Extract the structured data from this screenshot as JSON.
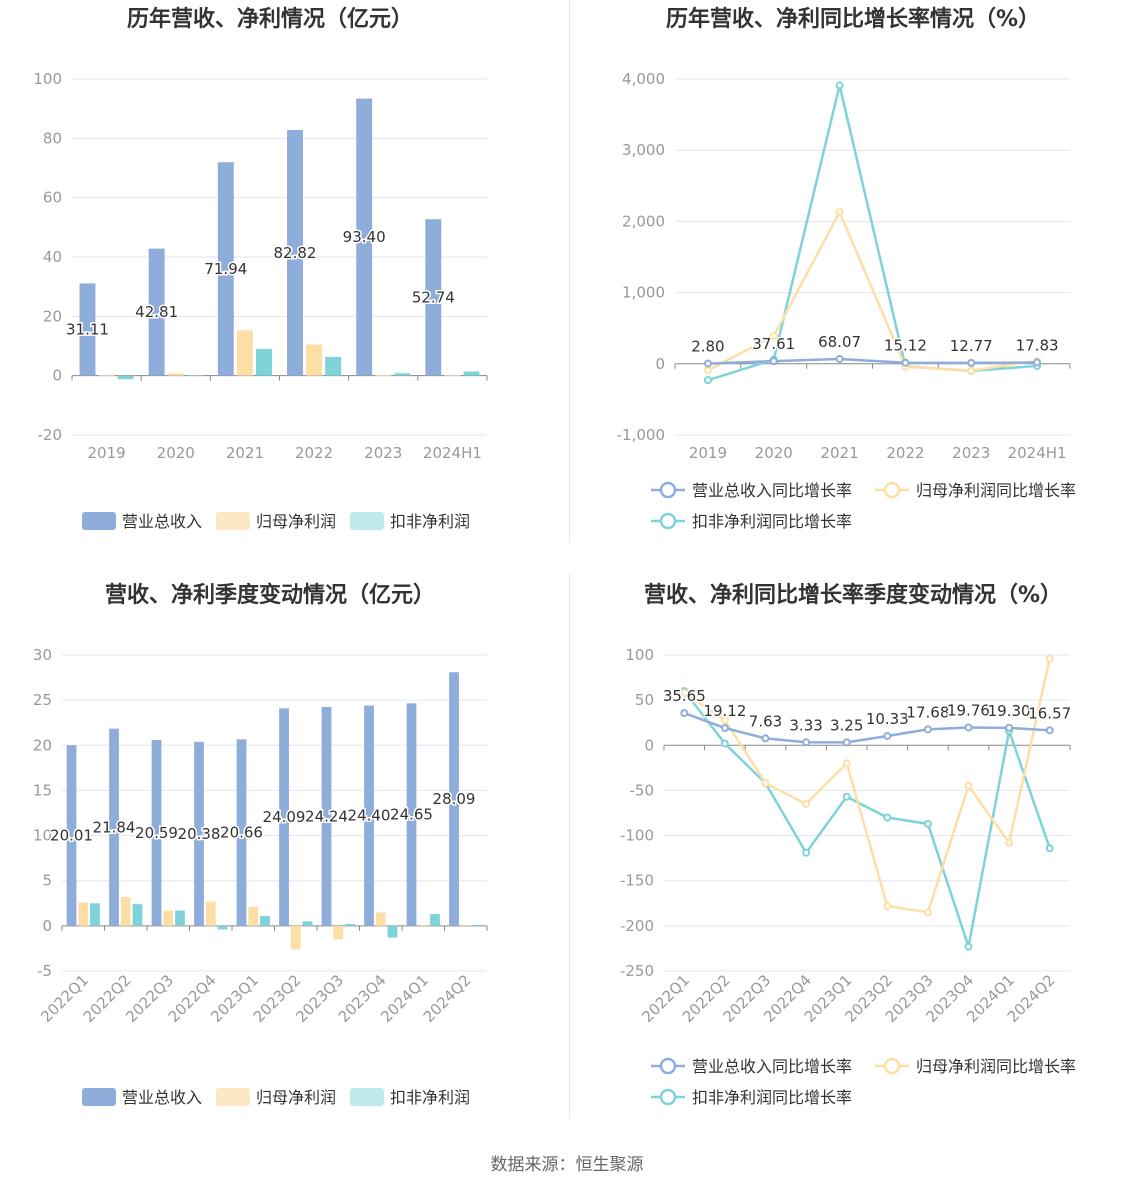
{
  "source": "数据来源：恒生聚源",
  "colors": {
    "revenue": "#8eaddb",
    "net_profit": "#fddfa6",
    "deducted_profit": "#7ed3d8"
  },
  "chart_data": [
    {
      "id": "annual-amount",
      "type": "bar",
      "title": "历年营收、净利情况（亿元）",
      "categories": [
        "2019",
        "2020",
        "2021",
        "2022",
        "2023",
        "2024H1"
      ],
      "ylim": [
        -20,
        100
      ],
      "yticks": [
        -20,
        0,
        20,
        40,
        60,
        80,
        100
      ],
      "grid": true,
      "legend_position": "bottom",
      "series": [
        {
          "name": "营业总收入",
          "values": [
            31.11,
            42.81,
            71.94,
            82.82,
            93.4,
            52.74
          ],
          "labels": [
            "31.11",
            "42.81",
            "71.94",
            "82.82",
            "93.40",
            "52.74"
          ]
        },
        {
          "name": "归母净利润",
          "values": [
            0.1,
            0.8,
            15.3,
            10.5,
            0.2,
            0.1
          ]
        },
        {
          "name": "扣非净利润",
          "values": [
            -1.2,
            0.2,
            9.0,
            6.3,
            0.8,
            1.4
          ]
        }
      ]
    },
    {
      "id": "annual-growth",
      "type": "line",
      "title": "历年营收、净利同比增长率情况（%）",
      "categories": [
        "2019",
        "2020",
        "2021",
        "2022",
        "2023",
        "2024H1"
      ],
      "ylim": [
        -1000,
        4000
      ],
      "yticks": [
        -1000,
        0,
        1000,
        2000,
        3000,
        4000
      ],
      "ytick_labels": [
        "-1,000",
        "0",
        "1,000",
        "2,000",
        "3,000",
        "4,000"
      ],
      "grid": true,
      "legend_position": "bottom",
      "series": [
        {
          "name": "营业总收入同比增长率",
          "values": [
            2.8,
            37.61,
            68.07,
            15.12,
            12.77,
            17.83
          ],
          "labels": [
            "2.80",
            "37.61",
            "68.07",
            "15.12",
            "12.77",
            "17.83"
          ]
        },
        {
          "name": "归母净利润同比增长率",
          "values": [
            -90,
            390,
            2130,
            -40,
            -95,
            40
          ]
        },
        {
          "name": "扣非净利润同比增长率",
          "values": [
            -230,
            60,
            3910,
            -35,
            -100,
            -30
          ]
        }
      ]
    },
    {
      "id": "quarterly-amount",
      "type": "bar",
      "title": "营收、净利季度变动情况（亿元）",
      "categories": [
        "2022Q1",
        "2022Q2",
        "2022Q3",
        "2022Q4",
        "2023Q1",
        "2023Q2",
        "2023Q3",
        "2023Q4",
        "2024Q1",
        "2024Q2"
      ],
      "ylim": [
        -5,
        30
      ],
      "yticks": [
        -5,
        0,
        5,
        10,
        15,
        20,
        25,
        30
      ],
      "grid": true,
      "legend_position": "bottom",
      "series": [
        {
          "name": "营业总收入",
          "values": [
            20.01,
            21.84,
            20.59,
            20.38,
            20.66,
            24.09,
            24.24,
            24.4,
            24.65,
            28.09
          ],
          "labels": [
            "20.01",
            "21.84",
            "20.59",
            "20.38",
            "20.66",
            "24.09",
            "24.24",
            "24.40",
            "24.65",
            "28.09"
          ]
        },
        {
          "name": "归母净利润",
          "values": [
            2.6,
            3.2,
            1.7,
            2.7,
            2.1,
            -2.6,
            -1.5,
            1.5,
            0.1,
            0.1
          ]
        },
        {
          "name": "扣非净利润",
          "values": [
            2.5,
            2.4,
            1.7,
            -0.4,
            1.1,
            0.5,
            0.2,
            -1.3,
            1.3,
            0.1
          ]
        }
      ]
    },
    {
      "id": "quarterly-growth",
      "type": "line",
      "title": "营收、净利同比增长率季度变动情况（%）",
      "categories": [
        "2022Q1",
        "2022Q2",
        "2022Q3",
        "2022Q4",
        "2023Q1",
        "2023Q2",
        "2023Q3",
        "2023Q4",
        "2024Q1",
        "2024Q2"
      ],
      "ylim": [
        -250,
        100
      ],
      "yticks": [
        -250,
        -200,
        -150,
        -100,
        -50,
        0,
        50,
        100
      ],
      "grid": true,
      "legend_position": "bottom",
      "series": [
        {
          "name": "营业总收入同比增长率",
          "values": [
            35.65,
            19.12,
            7.63,
            3.33,
            3.25,
            10.33,
            17.68,
            19.76,
            19.3,
            16.57
          ],
          "labels": [
            "35.65",
            "19.12",
            "7.63",
            "3.33",
            "3.25",
            "10.33",
            "17.68",
            "19.76",
            "19.30",
            "16.57"
          ]
        },
        {
          "name": "归母净利润同比增长率",
          "values": [
            58,
            28,
            -42,
            -65,
            -20,
            -178,
            -185,
            -45,
            -108,
            96
          ]
        },
        {
          "name": "扣非净利润同比增长率",
          "values": [
            60,
            2,
            -42,
            -119,
            -57,
            -80,
            -87,
            -223,
            16,
            -114
          ]
        }
      ]
    }
  ]
}
